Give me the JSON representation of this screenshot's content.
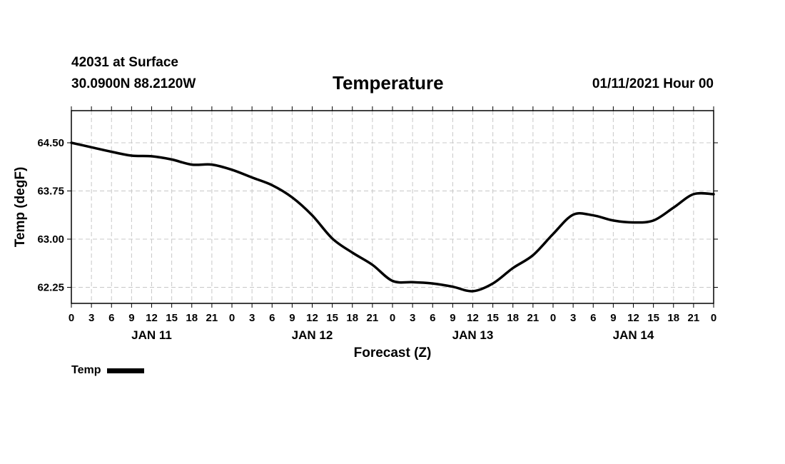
{
  "header": {
    "station": "42031 at Surface",
    "coords": "30.0900N 88.2120W",
    "title": "Temperature",
    "run_time": "01/11/2021 Hour 00"
  },
  "legend": {
    "label": "Temp"
  },
  "chart_data": {
    "type": "line",
    "title": "Temperature",
    "xlabel": "Forecast (Z)",
    "ylabel": "Temp (degF)",
    "xlim": [
      0,
      96
    ],
    "ylim": [
      62.0,
      65.0
    ],
    "yticks": [
      62.25,
      63.0,
      63.75,
      64.5
    ],
    "ytick_labels": [
      "62.25",
      "63.00",
      "63.75",
      "64.50"
    ],
    "xticks": [
      0,
      3,
      6,
      9,
      12,
      15,
      18,
      21,
      24,
      27,
      30,
      33,
      36,
      39,
      42,
      45,
      48,
      51,
      54,
      57,
      60,
      63,
      66,
      69,
      72,
      75,
      78,
      81,
      84,
      87,
      90,
      93,
      96
    ],
    "xtick_labels": [
      "0",
      "3",
      "6",
      "9",
      "12",
      "15",
      "18",
      "21",
      "0",
      "3",
      "6",
      "9",
      "12",
      "15",
      "18",
      "21",
      "0",
      "3",
      "6",
      "9",
      "12",
      "15",
      "18",
      "21",
      "0",
      "3",
      "6",
      "9",
      "12",
      "15",
      "18",
      "21",
      "0"
    ],
    "day_labels": [
      {
        "x": 12,
        "label": "JAN 11"
      },
      {
        "x": 36,
        "label": "JAN 12"
      },
      {
        "x": 60,
        "label": "JAN 13"
      },
      {
        "x": 84,
        "label": "JAN 14"
      }
    ],
    "grid": true,
    "legend_position": "bottom-left",
    "series": [
      {
        "name": "Temp",
        "color": "#000000",
        "x": [
          0,
          3,
          6,
          9,
          12,
          15,
          18,
          21,
          24,
          27,
          30,
          33,
          36,
          39,
          42,
          45,
          48,
          51,
          54,
          57,
          60,
          63,
          66,
          69,
          72,
          75,
          78,
          81,
          84,
          87,
          90,
          93,
          96
        ],
        "values": [
          64.5,
          64.43,
          64.36,
          64.3,
          64.29,
          64.24,
          64.16,
          64.16,
          64.08,
          63.96,
          63.84,
          63.65,
          63.37,
          63.01,
          62.79,
          62.6,
          62.35,
          62.33,
          62.31,
          62.26,
          62.19,
          62.31,
          62.55,
          62.75,
          63.08,
          63.38,
          63.37,
          63.29,
          63.26,
          63.29,
          63.49,
          63.7,
          63.7
        ]
      }
    ]
  }
}
